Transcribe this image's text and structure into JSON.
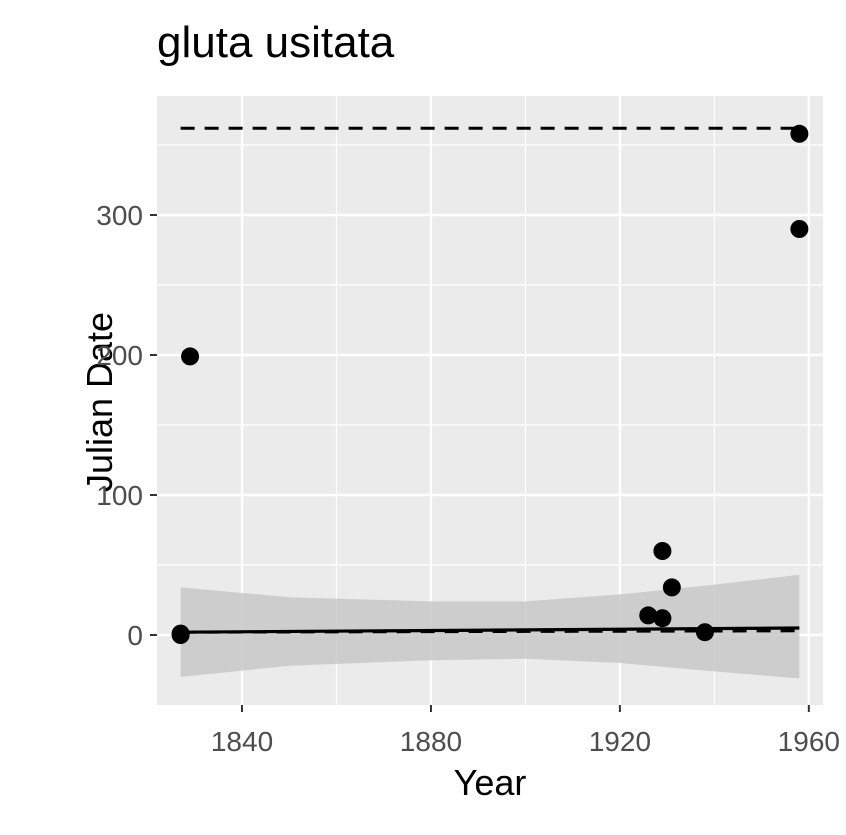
{
  "chart_data": {
    "type": "scatter",
    "title": "gluta usitata",
    "xlabel": "Year",
    "ylabel": "Julian Date",
    "xlim": [
      1822,
      1963
    ],
    "ylim": [
      -50,
      385
    ],
    "x_ticks": [
      1840,
      1880,
      1920,
      1960
    ],
    "y_ticks": [
      0,
      100,
      200,
      300
    ],
    "grid": true,
    "background": "#ebebeb",
    "points": [
      {
        "x": 1827,
        "y": 1
      },
      {
        "x": 1827,
        "y": 0
      },
      {
        "x": 1829,
        "y": 199
      },
      {
        "x": 1926,
        "y": 14
      },
      {
        "x": 1929,
        "y": 60
      },
      {
        "x": 1929,
        "y": 12
      },
      {
        "x": 1931,
        "y": 34
      },
      {
        "x": 1938,
        "y": 2
      },
      {
        "x": 1958,
        "y": 358
      },
      {
        "x": 1958,
        "y": 290
      }
    ],
    "fit_line": {
      "x": [
        1827,
        1958
      ],
      "y": [
        2,
        5
      ],
      "style": "solid"
    },
    "confidence_band": {
      "x": [
        1827,
        1850,
        1880,
        1900,
        1920,
        1940,
        1958
      ],
      "upper": [
        34,
        27,
        24,
        24,
        29,
        36,
        43
      ],
      "lower": [
        -30,
        -22,
        -18,
        -17,
        -20,
        -26,
        -31
      ],
      "color": "#c8c8c8"
    },
    "quantile_lines": [
      {
        "x": [
          1827,
          1958
        ],
        "y": [
          362,
          362
        ],
        "style": "dashed"
      },
      {
        "x": [
          1827,
          1958
        ],
        "y": [
          2,
          3
        ],
        "style": "dashed"
      }
    ]
  }
}
